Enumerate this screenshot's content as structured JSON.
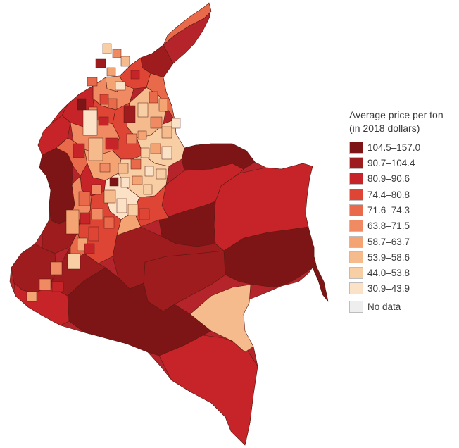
{
  "legend": {
    "title_line1": "Average price per ton",
    "title_line2": "(in 2018 dollars)",
    "classes": [
      {
        "label": "104.5–157.0",
        "color": "#7d1517"
      },
      {
        "label": "90.7–104.4",
        "color": "#9e1b1e"
      },
      {
        "label": "80.9–90.6",
        "color": "#c62428"
      },
      {
        "label": "74.4–80.8",
        "color": "#de4535"
      },
      {
        "label": "71.6–74.3",
        "color": "#e86a4a"
      },
      {
        "label": "63.8–71.5",
        "color": "#ef8a62"
      },
      {
        "label": "58.7–63.7",
        "color": "#f4a373"
      },
      {
        "label": "53.9–58.6",
        "color": "#f6bb8c"
      },
      {
        "label": "44.0–53.8",
        "color": "#f8cfa5"
      },
      {
        "label": "30.9–43.9",
        "color": "#fbe2c6"
      }
    ],
    "no_data": {
      "label": "No data",
      "color": "#eeeeee"
    }
  },
  "border_color": "#5a1a12"
}
